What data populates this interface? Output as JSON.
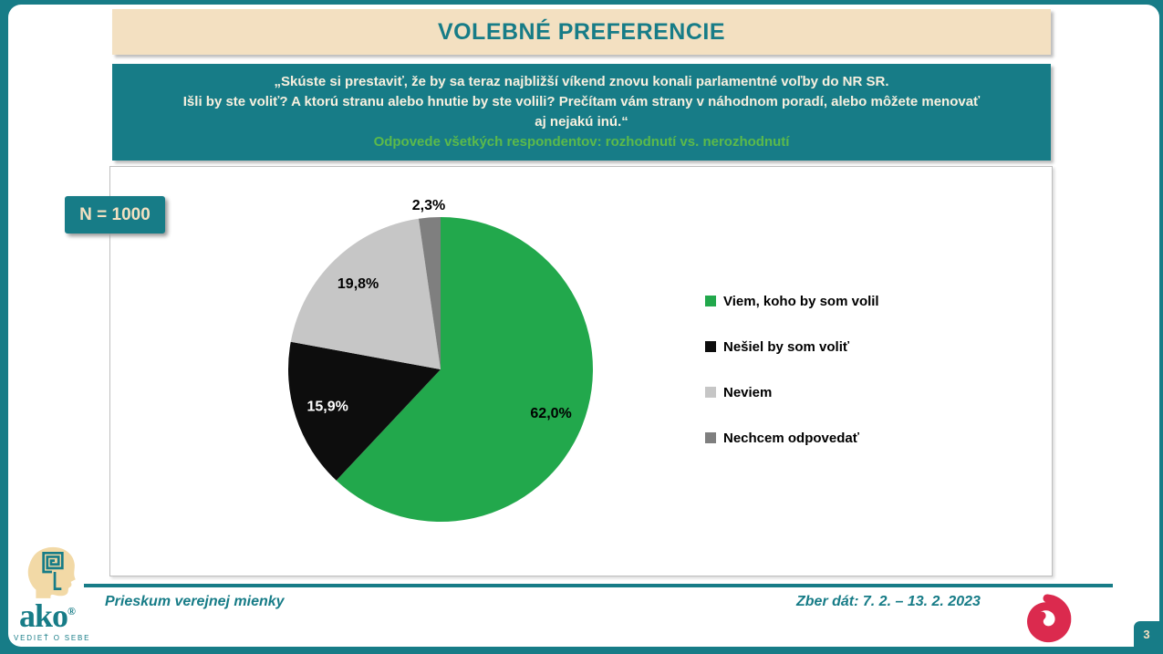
{
  "title_banner": {
    "text": "VOLEBNÉ PREFERENCIE"
  },
  "question_banner": {
    "line1": "„Skúste si prestaviť, že by sa teraz najbližší víkend znovu konali parlamentné voľby do NR SR.",
    "line2": "Išli by ste voliť? A ktorú stranu alebo hnutie by ste volili? Prečítam vám strany v náhodnom poradí, alebo môžete menovať",
    "line3": "aj nejakú inú.“",
    "subtitle": "Odpovede všetkých respondentov: rozhodnutí vs. nerozhodnutí"
  },
  "sample_size_label": "N = 1000",
  "chart_data": {
    "type": "pie",
    "labels": [
      "Viem, koho by som volil",
      "Nešiel by som voliť",
      "Neviem",
      "Nechcem odpovedať"
    ],
    "values": [
      62.0,
      15.9,
      19.8,
      2.3
    ],
    "display_values": [
      "62,0%",
      "15,9%",
      "19,8%",
      "2,3%"
    ],
    "colors": [
      "#22A84C",
      "#0D0D0D",
      "#C6C6C6",
      "#7F7F7F"
    ],
    "label_colors": [
      "#000000",
      "#FFFFFF",
      "#000000",
      "#000000"
    ],
    "start_angle_deg": 0,
    "direction": "clockwise",
    "legend_position": "right",
    "title": ""
  },
  "footer": {
    "left_caption": "Prieskum verejnej mienky",
    "date_caption": "Zber dát: 7. 2. – 13. 2. 2023",
    "page_number": "3",
    "logo": {
      "brand": "ako",
      "registered": "®",
      "tagline": "VEDIEŤ O SEBE"
    }
  },
  "colors": {
    "teal": "#177C87",
    "cream": "#F3E0C1",
    "subtitle_green": "#5CBA4A",
    "spiral_red": "#DB2A4E",
    "logo_beige": "#F2D9A6"
  }
}
